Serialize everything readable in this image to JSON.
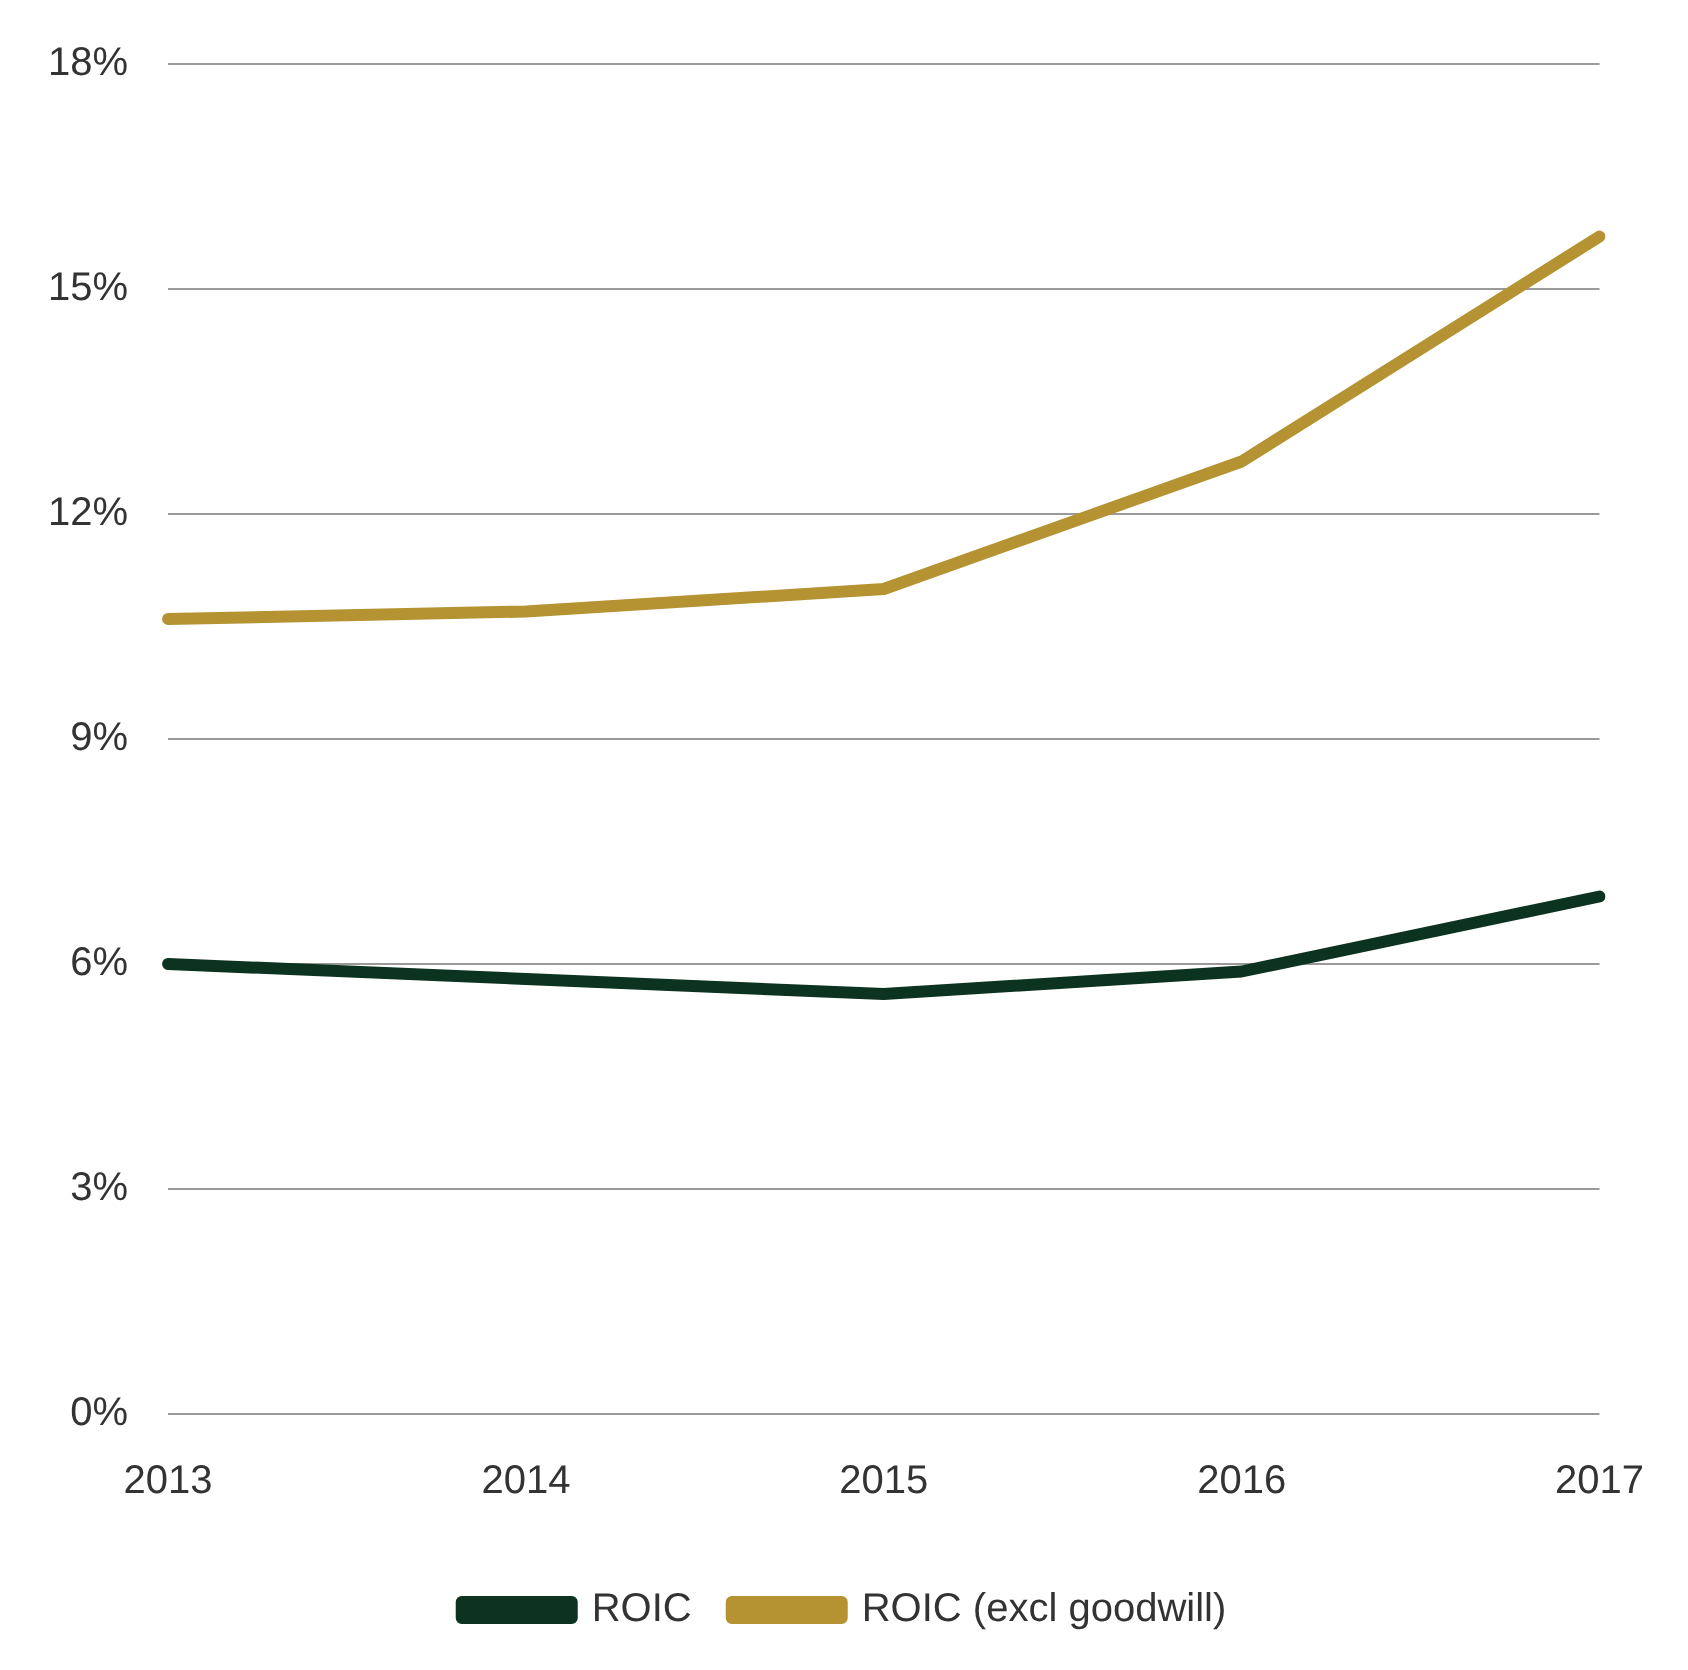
{
  "chart_data": {
    "type": "line",
    "categories": [
      "2013",
      "2014",
      "2015",
      "2016",
      "2017"
    ],
    "series": [
      {
        "name": "ROIC",
        "color": "#0c3220",
        "values": [
          6.0,
          5.8,
          5.6,
          5.9,
          6.9
        ]
      },
      {
        "name": "ROIC (excl goodwill)",
        "color": "#b59333",
        "values": [
          10.6,
          10.7,
          11.0,
          12.7,
          15.7
        ]
      }
    ],
    "ylim": [
      0,
      18
    ],
    "yticks": [
      {
        "value": 0,
        "label": "0%"
      },
      {
        "value": 3,
        "label": "3%"
      },
      {
        "value": 6,
        "label": "6%"
      },
      {
        "value": 9,
        "label": "9%"
      },
      {
        "value": 12,
        "label": "12%"
      },
      {
        "value": 15,
        "label": "15%"
      },
      {
        "value": 18,
        "label": "18%"
      }
    ],
    "grid": "y",
    "legend": "bottom",
    "marker": "none"
  }
}
